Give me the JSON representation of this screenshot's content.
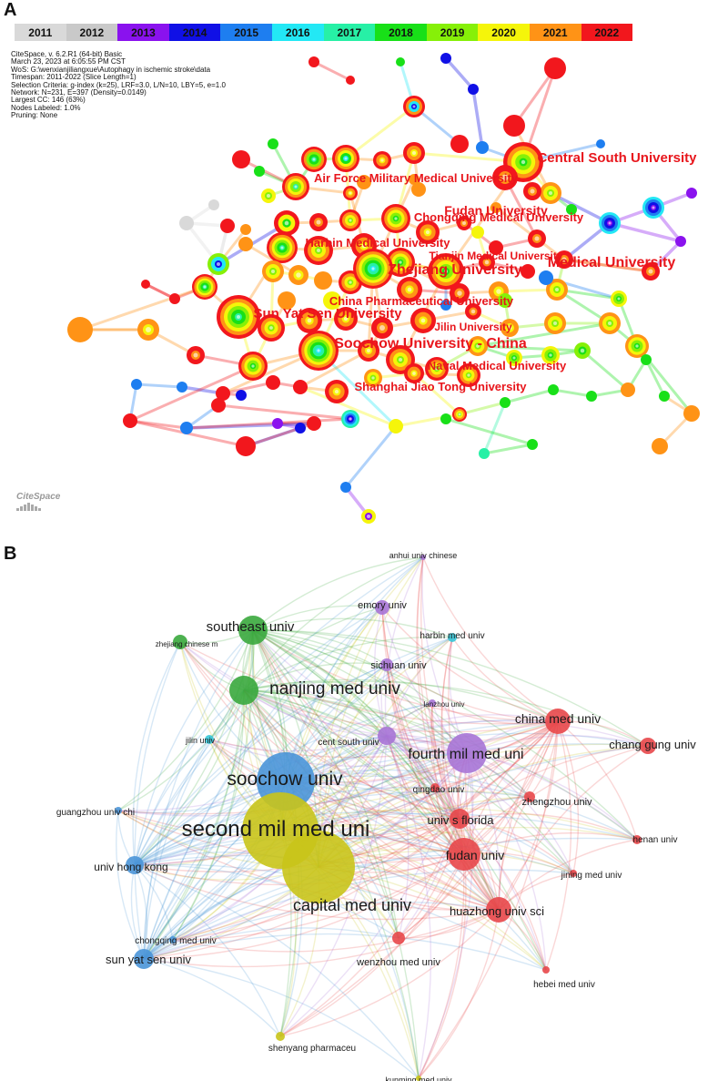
{
  "panel_a": {
    "letter": "A",
    "years": [
      {
        "label": "2011",
        "color": "#d9d9d9",
        "text": "#111"
      },
      {
        "label": "2012",
        "color": "#c9c9c9",
        "text": "#111"
      },
      {
        "label": "2013",
        "color": "#8a12ee",
        "text": "#111"
      },
      {
        "label": "2014",
        "color": "#1010e6",
        "text": "#111"
      },
      {
        "label": "2015",
        "color": "#1e7ef0",
        "text": "#111"
      },
      {
        "label": "2016",
        "color": "#23e8f5",
        "text": "#111"
      },
      {
        "label": "2017",
        "color": "#27f0a6",
        "text": "#111"
      },
      {
        "label": "2018",
        "color": "#18e018",
        "text": "#111"
      },
      {
        "label": "2019",
        "color": "#86f008",
        "text": "#111"
      },
      {
        "label": "2020",
        "color": "#f5f50a",
        "text": "#111"
      },
      {
        "label": "2021",
        "color": "#ff9316",
        "text": "#111"
      },
      {
        "label": "2022",
        "color": "#f2171d",
        "text": "#111"
      }
    ],
    "meta": [
      "CiteSpace, v. 6.2.R1 (64-bit) Basic",
      "March 23, 2023 at 6:05:55 PM CST",
      "WoS: G:\\wenxianjiliangxue\\Autophagy in ischemic stroke\\data",
      "Timespan: 2011-2022 (Slice Length=1)",
      "Selection Criteria: g-index (k=25), LRF=3.0, L/N=10, LBY=5, e=1.0",
      "Network: N=231, E=397 (Density=0.0149)",
      "Largest CC: 146 (63%)",
      "Nodes Labeled: 1.0%",
      "Pruning: None"
    ],
    "logo": "CiteSpace",
    "label_color": "#e8161c",
    "labels": [
      {
        "text": "Central South University",
        "size": 15
      },
      {
        "text": "Air Force Military Medical University",
        "size": 13
      },
      {
        "text": "Fudan University",
        "size": 14
      },
      {
        "text": "Chongqing Medical University",
        "size": 13
      },
      {
        "text": "Harbin Medical University",
        "size": 13
      },
      {
        "text": "Tianjin Medical University",
        "size": 12
      },
      {
        "text": "Medical University",
        "size": 16
      },
      {
        "text": "Zhejiang University",
        "size": 16
      },
      {
        "text": "China Pharmaceutical University",
        "size": 13
      },
      {
        "text": "Sun Yat Sen University",
        "size": 15
      },
      {
        "text": "Jilin University",
        "size": 12
      },
      {
        "text": "Soochow University - China",
        "size": 16
      },
      {
        "text": "Naval Medical University",
        "size": 13
      },
      {
        "text": "Shanghai Jiao Tong University",
        "size": 13
      }
    ]
  },
  "panel_b": {
    "letter": "B",
    "cluster_colors": {
      "red": "#e8474a",
      "blue": "#4a95d8",
      "green": "#3aa83d",
      "yellow": "#c9c41a",
      "purple": "#a774d6",
      "cyan": "#36c6d8"
    },
    "nodes": [
      {
        "label": "anhui univ chinese",
        "cluster": "purple",
        "size": 9
      },
      {
        "label": "emory univ",
        "cluster": "purple",
        "size": 11
      },
      {
        "label": "harbin med univ",
        "cluster": "cyan",
        "size": 10
      },
      {
        "label": "southeast univ",
        "cluster": "green",
        "size": 15
      },
      {
        "label": "sichuan univ",
        "cluster": "purple",
        "size": 11
      },
      {
        "label": "zhejiang chinese m",
        "cluster": "green",
        "size": 8
      },
      {
        "label": "lanzhou univ",
        "cluster": "purple",
        "size": 8
      },
      {
        "label": "nanjing med univ",
        "cluster": "green",
        "size": 19
      },
      {
        "label": "china med univ",
        "cluster": "red",
        "size": 14
      },
      {
        "label": "chang gung univ",
        "cluster": "red",
        "size": 13
      },
      {
        "label": "jilin univ",
        "cluster": "cyan",
        "size": 9
      },
      {
        "label": "cent south univ",
        "cluster": "purple",
        "size": 10
      },
      {
        "label": "fourth mil med uni",
        "cluster": "purple",
        "size": 16
      },
      {
        "label": "soochow univ",
        "cluster": "blue",
        "size": 21
      },
      {
        "label": "qingdao univ",
        "cluster": "red",
        "size": 10
      },
      {
        "label": "zhengzhou univ",
        "cluster": "red",
        "size": 11
      },
      {
        "label": "guangzhou univ chi",
        "cluster": "blue",
        "size": 10
      },
      {
        "label": "second mil med uni",
        "cluster": "yellow",
        "size": 24
      },
      {
        "label": "univ s florida",
        "cluster": "red",
        "size": 13
      },
      {
        "label": "henan univ",
        "cluster": "red",
        "size": 10
      },
      {
        "label": "univ hong kong",
        "cluster": "blue",
        "size": 12
      },
      {
        "label": "fudan univ",
        "cluster": "red",
        "size": 14
      },
      {
        "label": "jining med univ",
        "cluster": "red",
        "size": 10
      },
      {
        "label": "capital med univ",
        "cluster": "yellow",
        "size": 18
      },
      {
        "label": "huazhong univ sci",
        "cluster": "red",
        "size": 13
      },
      {
        "label": "chongqing med univ",
        "cluster": "blue",
        "size": 10
      },
      {
        "label": "sun yat sen univ",
        "cluster": "blue",
        "size": 13
      },
      {
        "label": "wenzhou med univ",
        "cluster": "red",
        "size": 11
      },
      {
        "label": "hebei med univ",
        "cluster": "red",
        "size": 10
      },
      {
        "label": "shenyang pharmaceu",
        "cluster": "yellow",
        "size": 10
      },
      {
        "label": "kunming med univ",
        "cluster": "yellow",
        "size": 9
      }
    ]
  }
}
